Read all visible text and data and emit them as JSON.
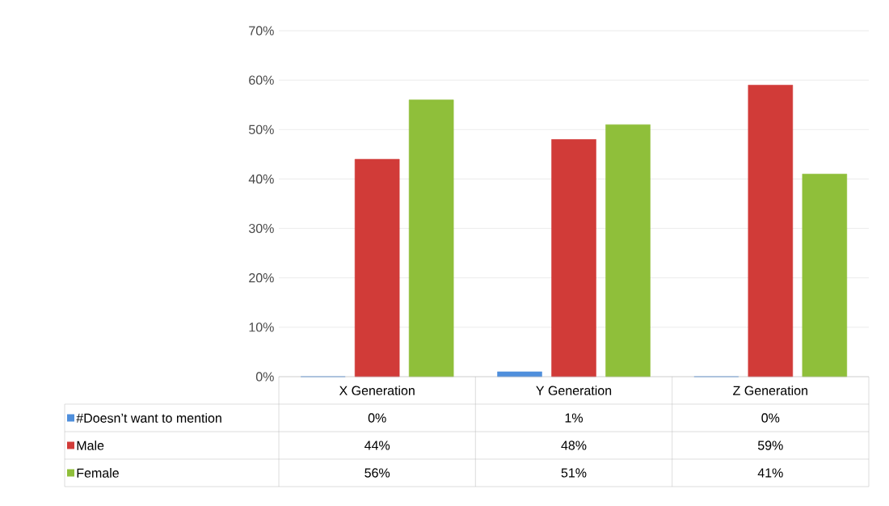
{
  "chart_data": {
    "type": "bar",
    "categories": [
      "X Generation",
      "Y Generation",
      "Z Generation"
    ],
    "series": [
      {
        "name": "#Doesn’t want to mention",
        "color": "#4f8fdc",
        "values": [
          0,
          1,
          0
        ],
        "value_labels": [
          "0%",
          "1%",
          "0%"
        ]
      },
      {
        "name": "Male",
        "color": "#d13b38",
        "values": [
          44,
          48,
          59
        ],
        "value_labels": [
          "44%",
          "48%",
          "59%"
        ]
      },
      {
        "name": "Female",
        "color": "#8fbf3a",
        "values": [
          56,
          51,
          41
        ],
        "value_labels": [
          "56%",
          "51%",
          "41%"
        ]
      }
    ],
    "ylim": [
      0,
      70
    ],
    "yticks": [
      {
        "value": 0,
        "label": "0%"
      },
      {
        "value": 10,
        "label": "10%"
      },
      {
        "value": 20,
        "label": "20%"
      },
      {
        "value": 30,
        "label": "30%"
      },
      {
        "value": 40,
        "label": "40%"
      },
      {
        "value": 50,
        "label": "50%"
      },
      {
        "value": 60,
        "label": "60%"
      },
      {
        "value": 70,
        "label": "70%"
      }
    ],
    "grid": "y",
    "legend": "bottom"
  }
}
